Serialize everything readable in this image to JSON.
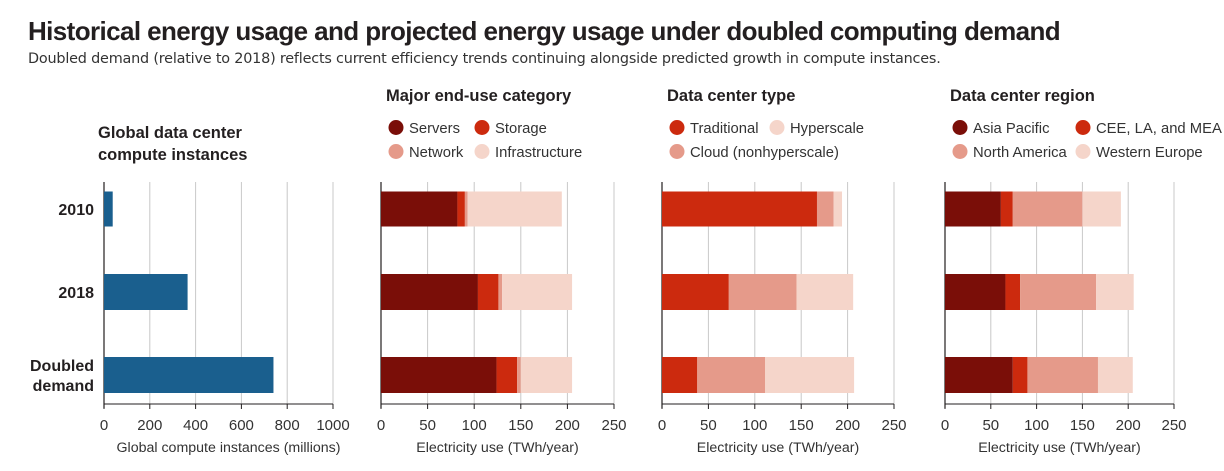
{
  "title": "Historical energy usage and projected energy usage under doubled computing demand",
  "subtitle": "Doubled demand (relative to 2018) reflects current efficiency trends continuing alongside predicted growth in compute instances.",
  "chart_data": [
    {
      "type": "bar",
      "orientation": "horizontal",
      "title": "Global data center compute instances",
      "categories": [
        "2010",
        "2018",
        "Doubled demand"
      ],
      "series": [
        {
          "color": "#1a5f8e",
          "values": [
            38,
            365,
            740
          ]
        }
      ],
      "xlabel": "Global compute instances (millions)",
      "xlim": [
        0,
        1000
      ],
      "xticks": [
        0,
        200,
        400,
        600,
        800,
        1000
      ],
      "grid": "vertical",
      "legend": "none"
    },
    {
      "type": "bar",
      "stacked": true,
      "orientation": "horizontal",
      "title": "Major end-use category",
      "categories": [
        "2010",
        "2018",
        "Doubled demand"
      ],
      "series": [
        {
          "name": "Servers",
          "color": "#7a0e08",
          "values": [
            82,
            104,
            124
          ]
        },
        {
          "name": "Storage",
          "color": "#cc2a0e",
          "values": [
            8,
            22,
            22
          ]
        },
        {
          "name": "Network",
          "color": "#e59a8a",
          "values": [
            3,
            4,
            4
          ]
        },
        {
          "name": "Infrastructure",
          "color": "#f5d5ca",
          "values": [
            101,
            75,
            55
          ]
        }
      ],
      "xlabel": "Electricity use (TWh/year)",
      "xlim": [
        0,
        250
      ],
      "xticks": [
        0,
        50,
        100,
        150,
        200,
        250
      ],
      "grid": "vertical",
      "legend": "top"
    },
    {
      "type": "bar",
      "stacked": true,
      "orientation": "horizontal",
      "title": "Data center type",
      "categories": [
        "2010",
        "2018",
        "Doubled demand"
      ],
      "series": [
        {
          "name": "Traditional",
          "color": "#cc2a0e",
          "values": [
            167,
            72,
            38
          ]
        },
        {
          "name": "Cloud (nonhyperscale)",
          "color": "#e59a8a",
          "values": [
            18,
            73,
            73
          ]
        },
        {
          "name": "Hyperscale",
          "color": "#f5d5ca",
          "values": [
            9,
            61,
            96
          ]
        }
      ],
      "xlabel": "Electricity use (TWh/year)",
      "xlim": [
        0,
        250
      ],
      "xticks": [
        0,
        50,
        100,
        150,
        200,
        250
      ],
      "grid": "vertical",
      "legend": "top"
    },
    {
      "type": "bar",
      "stacked": true,
      "orientation": "horizontal",
      "title": "Data center region",
      "categories": [
        "2010",
        "2018",
        "Doubled demand"
      ],
      "series": [
        {
          "name": "Asia Pacific",
          "color": "#7a0e08",
          "values": [
            61,
            66,
            74
          ]
        },
        {
          "name": "CEE, LA, and MEA",
          "color": "#cc2a0e",
          "values": [
            13,
            16,
            16
          ]
        },
        {
          "name": "North America",
          "color": "#e59a8a",
          "values": [
            76,
            83,
            77
          ]
        },
        {
          "name": "Western Europe",
          "color": "#f5d5ca",
          "values": [
            42,
            41,
            38
          ]
        }
      ],
      "xlabel": "Electricity use (TWh/year)",
      "xlim": [
        0,
        250
      ],
      "xticks": [
        0,
        50,
        100,
        150,
        200,
        250
      ],
      "grid": "vertical",
      "legend": "top"
    }
  ]
}
